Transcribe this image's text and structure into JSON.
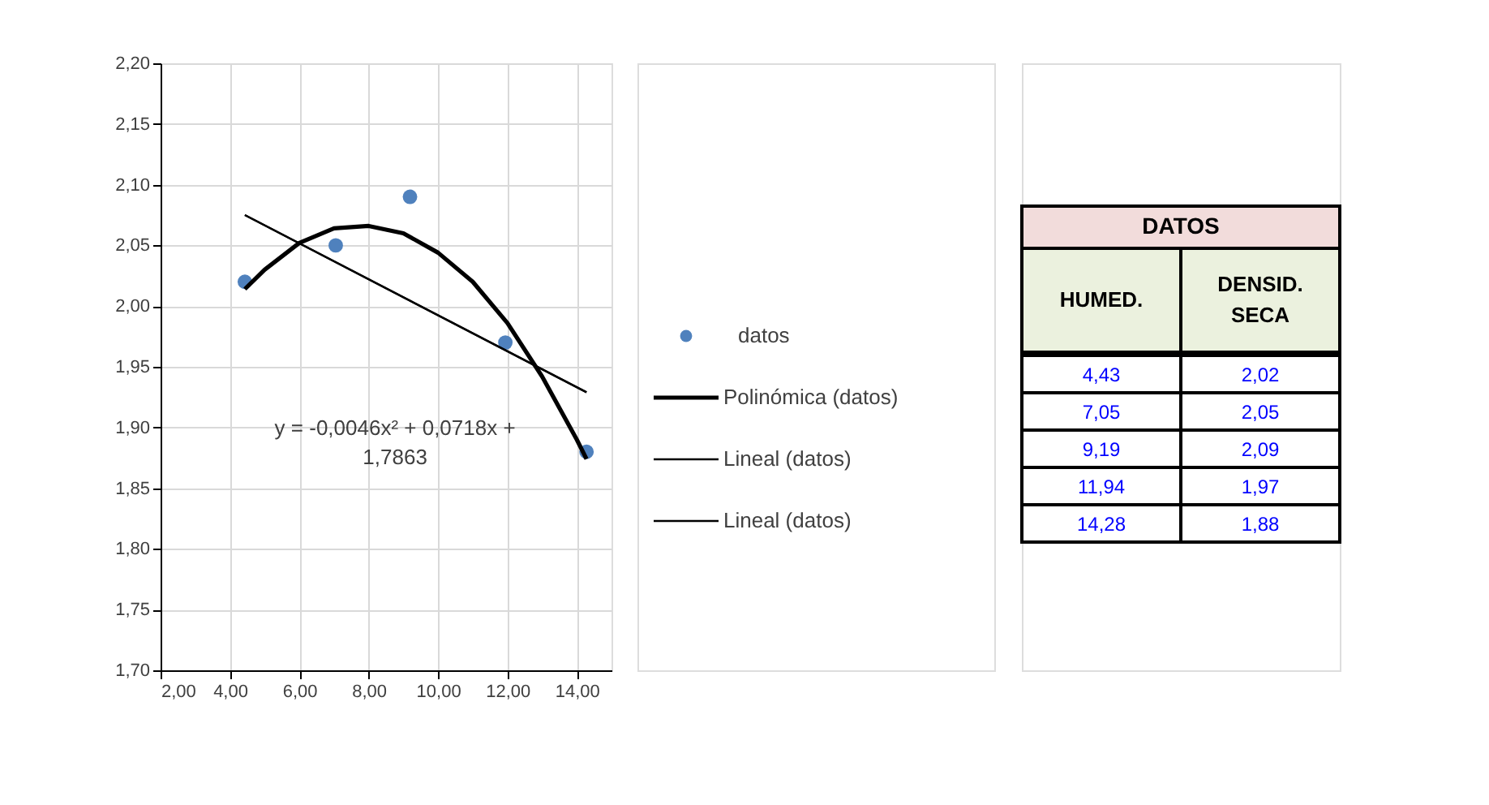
{
  "chart_data": [
    {
      "type": "scatter",
      "series": [
        {
          "name": "datos",
          "color": "#4f81bd",
          "x": [
            4.43,
            7.05,
            9.19,
            11.94,
            14.28
          ],
          "values": [
            2.02,
            2.05,
            2.09,
            1.97,
            1.88
          ]
        },
        {
          "name": "Polinómica (datos)",
          "type": "line",
          "color": "#000000",
          "x": [
            4.43,
            5,
            6,
            7,
            8,
            9,
            10,
            11,
            12,
            13,
            14,
            14.28
          ],
          "values": [
            2.014,
            2.03,
            2.052,
            2.064,
            2.066,
            2.06,
            2.044,
            2.02,
            1.986,
            1.942,
            1.89,
            1.874
          ]
        },
        {
          "name": "Lineal (datos)",
          "type": "line",
          "color": "#000000",
          "x": [
            4.43,
            14.28
          ],
          "values": [
            2.075,
            1.929
          ]
        },
        {
          "name": "Lineal (datos)",
          "type": "line",
          "color": "#000000",
          "x": [
            4.43,
            14.28
          ],
          "values": [
            2.075,
            1.929
          ]
        }
      ],
      "xlim": [
        2,
        15
      ],
      "xticks": [
        {
          "value": 2,
          "label": "2,00"
        },
        {
          "value": 4,
          "label": "4,00"
        },
        {
          "value": 6,
          "label": "6,00"
        },
        {
          "value": 8,
          "label": "8,00"
        },
        {
          "value": 10,
          "label": "10,00"
        },
        {
          "value": 12,
          "label": "12,00"
        },
        {
          "value": 14,
          "label": "14,00"
        }
      ],
      "ylim": [
        1.7,
        2.2
      ],
      "yticks": [
        {
          "value": 1.7,
          "label": "1,70"
        },
        {
          "value": 1.75,
          "label": "1,75"
        },
        {
          "value": 1.8,
          "label": "1,80"
        },
        {
          "value": 1.85,
          "label": "1,85"
        },
        {
          "value": 1.9,
          "label": "1,90"
        },
        {
          "value": 1.95,
          "label": "1,95"
        },
        {
          "value": 2.0,
          "label": "2,00"
        },
        {
          "value": 2.05,
          "label": "2,05"
        },
        {
          "value": 2.1,
          "label": "2,10"
        },
        {
          "value": 2.15,
          "label": "2,15"
        },
        {
          "value": 2.2,
          "label": "2,20"
        }
      ],
      "grid": true,
      "legend": "right",
      "annotations": [
        "y = -0,0046x² + 0,0718x + 1,7863"
      ]
    },
    {
      "type": "other",
      "title": "DATOS",
      "categories": [
        "HUMED.",
        "DENSID. SECA"
      ],
      "annotations": [
        "4,43",
        "2,02",
        "7,05",
        "2,05",
        "9,19",
        "2,09",
        "11,94",
        "1,97",
        "14,28",
        "1,88"
      ]
    }
  ]
}
